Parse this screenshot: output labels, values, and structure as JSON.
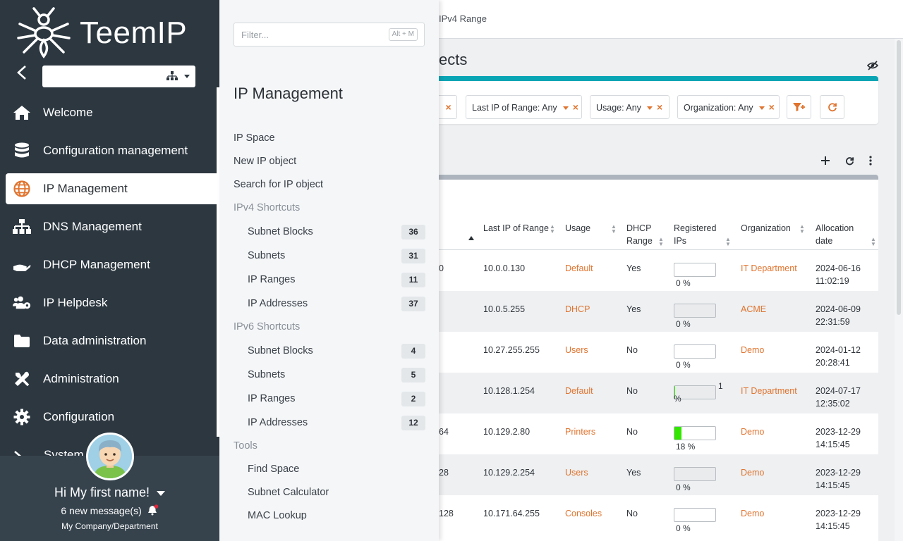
{
  "breadcrumb": {
    "current": "IPv4 Range"
  },
  "main": {
    "title": "IP Management / Search for IP objects",
    "title_visible": "ects"
  },
  "filters": {
    "chip_partial_x": "×",
    "chips": [
      {
        "label": "Last IP of Range: Any"
      },
      {
        "label": "Usage: Any"
      },
      {
        "label": "Organization: Any"
      }
    ],
    "remove": "×"
  },
  "table": {
    "columns": {
      "last_ip": "Last IP of Range",
      "usage": "Usage",
      "dhcp_range": [
        "DHCP",
        "Range"
      ],
      "registered_ips": [
        "Registered",
        "IPs"
      ],
      "organization": "Organization",
      "allocation_date": [
        "Allocation",
        "date"
      ]
    },
    "rows": [
      {
        "first_ip_tail": "0",
        "last_ip": "10.0.0.130",
        "usage": "Default",
        "dhcp": "Yes",
        "pct_label": "0 %",
        "pct_value": 0,
        "org": "IT Department",
        "date": "2024-06-16",
        "time": "11:02:19"
      },
      {
        "first_ip_tail": "",
        "last_ip": "10.0.5.255",
        "usage": "DHCP",
        "dhcp": "Yes",
        "pct_label": "0 %",
        "pct_value": 0,
        "org": "ACME",
        "date": "2024-06-09",
        "time": "22:31:59"
      },
      {
        "first_ip_tail": "",
        "last_ip": "10.27.255.255",
        "usage": "Users",
        "dhcp": "No",
        "pct_label": "0 %",
        "pct_value": 0,
        "org": "Demo",
        "date": "2024-01-12",
        "time": "20:28:41"
      },
      {
        "first_ip_tail": "",
        "last_ip": "10.128.1.254",
        "usage": "Default",
        "dhcp": "No",
        "pct_label_a": "1",
        "pct_label_b": "%",
        "pct_value": 1,
        "org": "IT Department",
        "date": "2024-07-17",
        "time": "12:35:02"
      },
      {
        "first_ip_tail": "64",
        "last_ip": "10.129.2.80",
        "usage": "Printers",
        "dhcp": "No",
        "pct_label": "18 %",
        "pct_value": 18,
        "org": "Demo",
        "date": "2023-12-29",
        "time": "14:15:45"
      },
      {
        "first_ip_tail": "28",
        "last_ip": "10.129.2.254",
        "usage": "Users",
        "dhcp": "Yes",
        "pct_label": "0 %",
        "pct_value": 0,
        "org": "Demo",
        "date": "2023-12-29",
        "time": "14:15:45"
      },
      {
        "first_ip_tail": "128",
        "last_ip": "10.171.64.255",
        "usage": "Consoles",
        "dhcp": "No",
        "pct_label": "0 %",
        "pct_value": 0,
        "org": "Demo",
        "date": "2023-12-29",
        "time": "14:15:45"
      }
    ]
  },
  "sidebar": {
    "logo_text": "TeemIP",
    "items": [
      {
        "label": "Welcome",
        "icon": "home-icon"
      },
      {
        "label": "Configuration management",
        "icon": "database-icon"
      },
      {
        "label": "IP Management",
        "icon": "globe-icon"
      },
      {
        "label": "DNS Management",
        "icon": "sitemap-icon"
      },
      {
        "label": "DHCP Management",
        "icon": "hand-icon"
      },
      {
        "label": "IP Helpdesk",
        "icon": "users-gear-icon"
      },
      {
        "label": "Data administration",
        "icon": "folder-icon"
      },
      {
        "label": "Administration",
        "icon": "tools-icon"
      },
      {
        "label": "Configuration",
        "icon": "gear-icon"
      }
    ],
    "peek_label": "System"
  },
  "user": {
    "greeting": "Hi My first name!",
    "messages": "6 new message(s)",
    "org": "My Company/Department"
  },
  "flyout": {
    "filter_placeholder": "Filter...",
    "filter_shortcut": "Alt + M",
    "title": "IP Management",
    "entries": [
      {
        "label": "IP Space"
      },
      {
        "label": "New IP object"
      },
      {
        "label": "Search for IP object"
      }
    ],
    "ipv4_group": "IPv4 Shortcuts",
    "ipv4": [
      {
        "label": "Subnet Blocks",
        "count": "36"
      },
      {
        "label": "Subnets",
        "count": "31"
      },
      {
        "label": "IP Ranges",
        "count": "11"
      },
      {
        "label": "IP Addresses",
        "count": "37"
      }
    ],
    "ipv6_group": "IPv6 Shortcuts",
    "ipv6": [
      {
        "label": "Subnet Blocks",
        "count": "4"
      },
      {
        "label": "Subnets",
        "count": "5"
      },
      {
        "label": "IP Ranges",
        "count": "2"
      },
      {
        "label": "IP Addresses",
        "count": "12"
      }
    ],
    "tools_group": "Tools",
    "tools": [
      {
        "label": "Find Space"
      },
      {
        "label": "Subnet Calculator"
      },
      {
        "label": "MAC Lookup"
      }
    ]
  },
  "colors": {
    "accent": "#e0742f",
    "teal": "#0aa5b5",
    "sidebar": "#2c3740",
    "usage_fill": "#33e600"
  }
}
